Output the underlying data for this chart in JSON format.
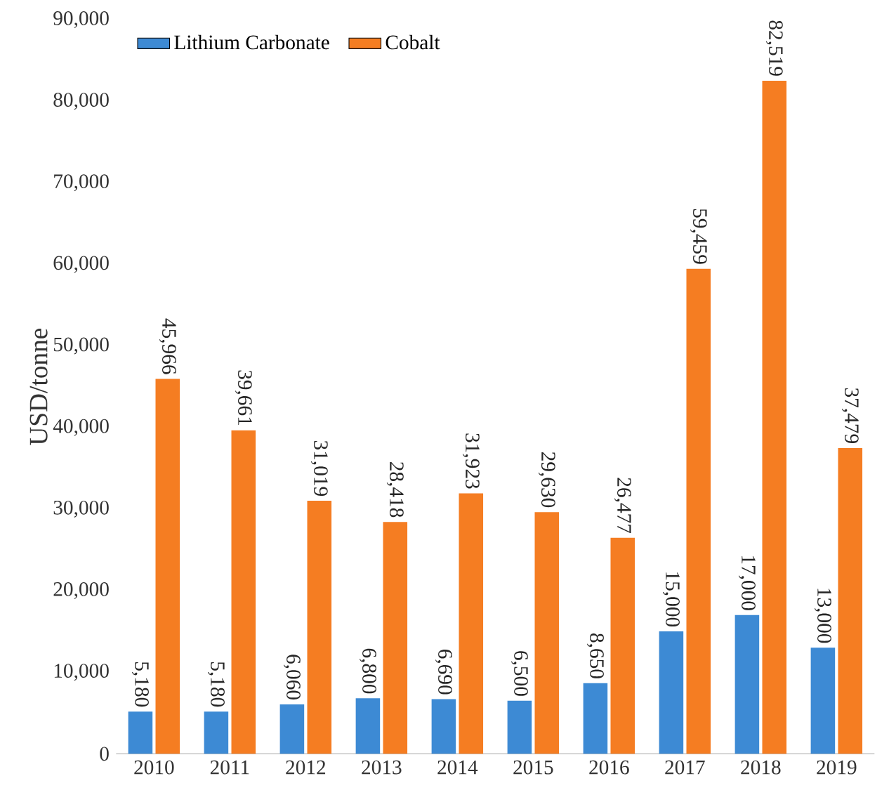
{
  "chart_data": {
    "type": "bar",
    "ylabel": "USD/tonne",
    "categories": [
      "2010",
      "2011",
      "2012",
      "2013",
      "2014",
      "2015",
      "2016",
      "2017",
      "2018",
      "2019"
    ],
    "series": [
      {
        "name": "Lithium Carbonate",
        "color": "#3d8ad4",
        "values": [
          5180,
          5180,
          6060,
          6800,
          6690,
          6500,
          8650,
          15000,
          17000,
          13000
        ],
        "value_labels": [
          "5,180",
          "5,180",
          "6,060",
          "6,800",
          "6,690",
          "6,500",
          "8,650",
          "15,000",
          "17,000",
          "13,000"
        ]
      },
      {
        "name": "Cobalt",
        "color": "#f57d22",
        "values": [
          45966,
          39661,
          31019,
          28418,
          31923,
          29630,
          26477,
          59459,
          82519,
          37479
        ],
        "value_labels": [
          "45,966",
          "39,661",
          "31,019",
          "28,418",
          "31,923",
          "29,630",
          "26,477",
          "59,459",
          "82,519",
          "37,479"
        ]
      }
    ],
    "ylim": [
      0,
      90000
    ],
    "yticks": [
      0,
      {
        "value": 10000,
        "label": "10,000"
      },
      {
        "value": 20000,
        "label": "20,000"
      },
      {
        "value": 30000,
        "label": "30,000"
      },
      {
        "value": 40000,
        "label": "40,000"
      },
      {
        "value": 50000,
        "label": "50,000"
      },
      {
        "value": 60000,
        "label": "60,000"
      },
      {
        "value": 70000,
        "label": "70,000"
      },
      {
        "value": 80000,
        "label": "80,000"
      },
      {
        "value": 90000,
        "label": "90,000"
      }
    ],
    "legend": "top left"
  }
}
